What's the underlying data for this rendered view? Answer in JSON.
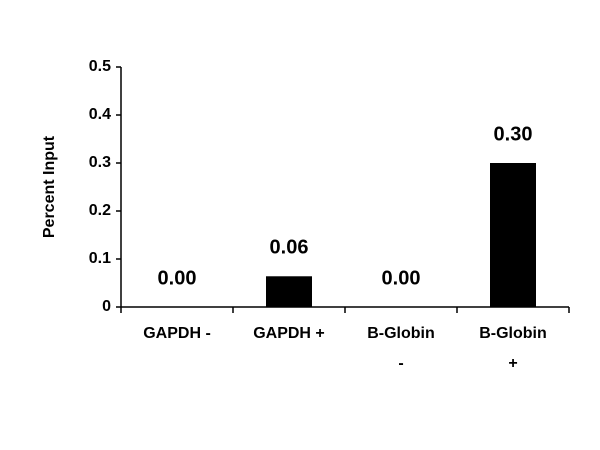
{
  "chart_data": {
    "type": "bar",
    "y_label": "Percent Input",
    "categories": [
      "GAPDH -",
      "GAPDH +",
      "B-Globin -",
      "B-Globin +"
    ],
    "values": [
      0,
      0.064,
      0,
      0.3
    ],
    "value_labels": [
      "0.00",
      "0.06",
      "0.00",
      "0.30"
    ],
    "color": "#000000",
    "ylim": [
      0,
      0.5
    ],
    "yticks": [
      0,
      0.1,
      0.2,
      0.3,
      0.4,
      0.5
    ],
    "grid": false
  }
}
